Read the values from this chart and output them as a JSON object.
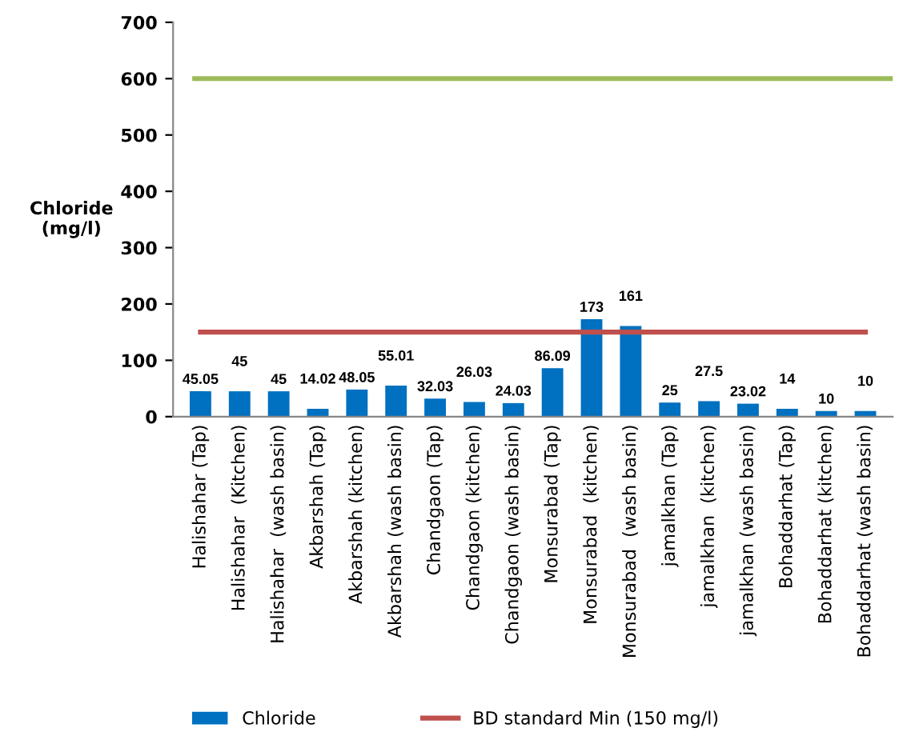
{
  "chart_data": {
    "type": "bar",
    "ylabel": "Chloride\n(mg/l)",
    "categories": [
      "Halishahar (Tap)",
      "Halishahar  (Kitchen)",
      "Halishahar  (wash basin)",
      "Akbarshah (Tap)",
      "Akbarshah (kitchen)",
      "Akbarshah (wash basin)",
      "Chandgaon (Tap)",
      "Chandgaon (kitchen)",
      "Chandgaon (wash basin)",
      "Monsurabad (Tap)",
      "Monsurabad  (kitchen)",
      "Monsurabad  (wash basin)",
      "jamalkhan (Tap)",
      "jamalkhan  (kitchen)",
      "jamalkhan (wash basin)",
      "Bohaddarhat (Tap)",
      "Bohaddarhat (kitchen)",
      "Bohaddarhat (wash basin)"
    ],
    "series": [
      {
        "name": "Chloride",
        "color": "#0070c0",
        "values": [
          45.05,
          45,
          45,
          14.02,
          48.05,
          55.01,
          32.03,
          26.03,
          24.03,
          86.09,
          173,
          161,
          25,
          27.5,
          23.02,
          14,
          10,
          10
        ],
        "value_labels": [
          "45.05",
          "45",
          "45",
          "14.02",
          "48.05",
          "55.01",
          "32.03",
          "26.03",
          "24.03",
          "86.09",
          "173",
          "161",
          "25",
          "27.5",
          "23.02",
          "14",
          "10",
          "10"
        ]
      },
      {
        "name": "BD standard Min (150 mg/l)",
        "type": "line",
        "color": "#c0504d",
        "values": [
          150,
          150,
          150,
          150,
          150,
          150,
          150,
          150,
          150,
          150,
          150,
          150,
          150,
          150,
          150,
          150,
          150,
          150
        ]
      }
    ],
    "ref_lines": [
      {
        "axis": "y",
        "value": 600,
        "color": "#9bbb59"
      }
    ],
    "ylim": [
      0,
      700
    ],
    "yticks": [
      0,
      100,
      200,
      300,
      400,
      500,
      600,
      700
    ],
    "grid": false,
    "legend": "bottom"
  }
}
